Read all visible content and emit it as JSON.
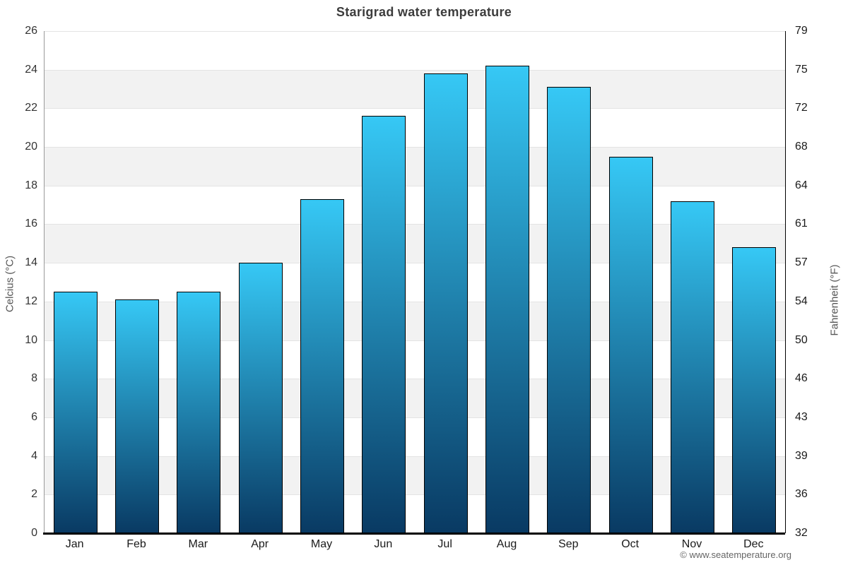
{
  "title": "Starigrad water temperature",
  "footer": {
    "credits": "© www.seatemperature.org"
  },
  "chart_data": {
    "type": "bar",
    "title": "Starigrad water temperature",
    "categories": [
      "Jan",
      "Feb",
      "Mar",
      "Apr",
      "May",
      "Jun",
      "Jul",
      "Aug",
      "Sep",
      "Oct",
      "Nov",
      "Dec"
    ],
    "values": [
      12.5,
      12.1,
      12.5,
      14.0,
      17.3,
      21.6,
      23.8,
      24.2,
      23.1,
      19.5,
      17.2,
      14.8
    ],
    "unit": "°C",
    "ylabel_left": "Celcius (°C)",
    "ylabel_right": "Fahrenheit (°F)",
    "yticks_celsius": [
      26,
      24,
      22,
      20,
      18,
      16,
      14,
      12,
      10,
      8,
      6,
      4,
      2,
      0
    ],
    "yticks_fahrenheit": [
      79,
      75,
      72,
      68,
      64,
      61,
      57,
      54,
      50,
      46,
      43,
      39,
      36,
      32
    ],
    "ylim": [
      0,
      26
    ],
    "grid": true,
    "legend_position": "none",
    "colors": {
      "bar_gradient_top": "#36c8f5",
      "bar_gradient_bottom": "#093a63",
      "bar_border": "#000000",
      "band_fill": "#f2f2f2",
      "gridline": "#e4e4e4",
      "title_text": "#3c3c3c",
      "tick_text": "#1a1a1a",
      "axis_title_text": "#555555",
      "credits_text": "#666666"
    }
  }
}
